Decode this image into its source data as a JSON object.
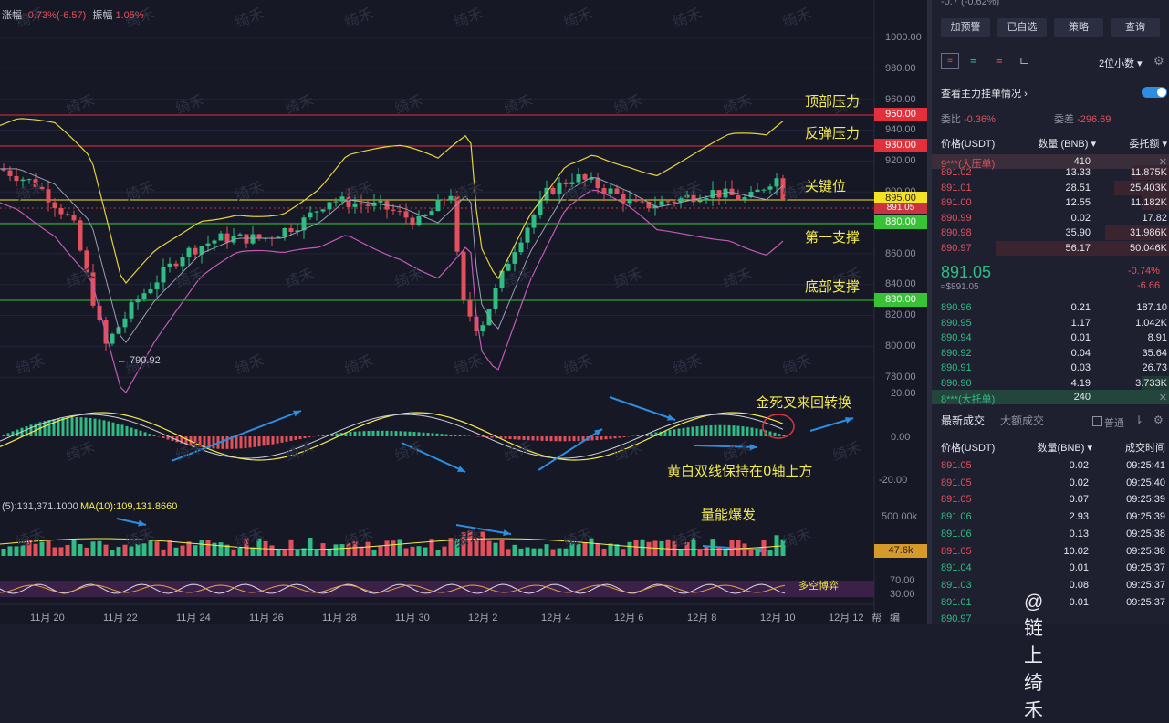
{
  "header": {
    "change_label": "涨幅",
    "change_value": "-0.73%(-6.57)",
    "amplitude_label": "振幅",
    "amplitude_value": "1.05%"
  },
  "price_axis": [
    "1000.00",
    "980.00",
    "960.00",
    "940.00",
    "920.00",
    "900.00",
    "880.00",
    "860.00",
    "840.00",
    "820.00",
    "800.00",
    "780.00"
  ],
  "macd_axis": [
    "20.00",
    "0.00",
    "-20.00"
  ],
  "volume_axis": [
    "500.00k"
  ],
  "osc_axis": [
    "70.00",
    "30.00"
  ],
  "price_tags": {
    "top_resistance": "950.00",
    "rebound_resistance": "930.00",
    "key_level": "895.00",
    "current": "891.05",
    "first_support": "880.00",
    "bottom_support": "830.00",
    "volume": "47.6k"
  },
  "annotations": {
    "top_resistance": "顶部压力",
    "rebound_resistance": "反弹压力",
    "key_level": "关键位",
    "first_support": "第一支撑",
    "bottom_support": "底部支撑",
    "golden_death_cross": "金死叉来回转换",
    "yellow_white_lines": "黄白双线保持在0轴上方",
    "volume_burst": "量能爆发",
    "bull_bear": "多空博弈",
    "low_marker": "← 790.92"
  },
  "volume_header": "(5):131,371.1000",
  "volume_ma10": "MA(10):109,131.8660",
  "x_axis": [
    "11月 20",
    "11月 22",
    "11月 24",
    "11月 26",
    "11月 28",
    "11月 30",
    "12月 2",
    "12月 4",
    "12月 6",
    "12月 8",
    "12月 10",
    "12月 12"
  ],
  "corner_labels": [
    "帮",
    "编"
  ],
  "watermark": "@链上绮禾",
  "watermark_tile": "绮禾",
  "colors": {
    "up": "#2fbd85",
    "down": "#e2515b",
    "yellow": "#f3ea4e",
    "arrow": "#2d8de0"
  },
  "panel": {
    "top_partial": "-0.7 (-0.62%)",
    "buttons": [
      "加预警",
      "已自选",
      "策略",
      "查询"
    ],
    "precision": "2位小数 ▾",
    "main_orders_title": "查看主力挂单情况",
    "ratio_label": "委比",
    "ratio_value": "-0.36%",
    "diff_label": "委差",
    "diff_value": "-296.69",
    "book_headers": [
      "价格(USDT)",
      "数量 (BNB) ▾",
      "委托额 ▾"
    ],
    "big_ask": {
      "label": "9***(大压单)",
      "qty": "410"
    },
    "asks": [
      [
        "891.02",
        "13.33",
        "11.875K"
      ],
      [
        "891.01",
        "28.51",
        "25.403K"
      ],
      [
        "891.00",
        "12.55",
        "11.182K"
      ],
      [
        "890.99",
        "0.02",
        "17.82"
      ],
      [
        "890.98",
        "35.90",
        "31.986K"
      ],
      [
        "890.97",
        "56.17",
        "50.046K"
      ]
    ],
    "last_price": "891.05",
    "last_price_usd": "≈$891.05",
    "last_change_pct": "-0.74%",
    "last_change": "-6.66",
    "bids": [
      [
        "890.96",
        "0.21",
        "187.10"
      ],
      [
        "890.95",
        "1.17",
        "1.042K"
      ],
      [
        "890.94",
        "0.01",
        "8.91"
      ],
      [
        "890.92",
        "0.04",
        "35.64"
      ],
      [
        "890.91",
        "0.03",
        "26.73"
      ],
      [
        "890.90",
        "4.19",
        "3.733K"
      ]
    ],
    "big_bid": {
      "label": "8***(大托单)",
      "qty": "240"
    },
    "trade_tabs": [
      "最新成交",
      "大额成交"
    ],
    "trade_option": "普通",
    "trade_headers": [
      "价格(USDT)",
      "数量(BNB) ▾",
      "成交时间"
    ],
    "trades": [
      [
        "891.05",
        "0.02",
        "09:25:41",
        "down"
      ],
      [
        "891.05",
        "0.02",
        "09:25:40",
        "down"
      ],
      [
        "891.05",
        "0.07",
        "09:25:39",
        "down"
      ],
      [
        "891.06",
        "2.93",
        "09:25:39",
        "up"
      ],
      [
        "891.06",
        "0.13",
        "09:25:38",
        "up"
      ],
      [
        "891.05",
        "10.02",
        "09:25:38",
        "down"
      ],
      [
        "891.04",
        "0.01",
        "09:25:37",
        "up"
      ],
      [
        "891.03",
        "0.08",
        "09:25:37",
        "up"
      ],
      [
        "891.01",
        "0.01",
        "09:25:37",
        "up"
      ],
      [
        "890.97",
        "",
        "",
        ""
      ]
    ]
  }
}
